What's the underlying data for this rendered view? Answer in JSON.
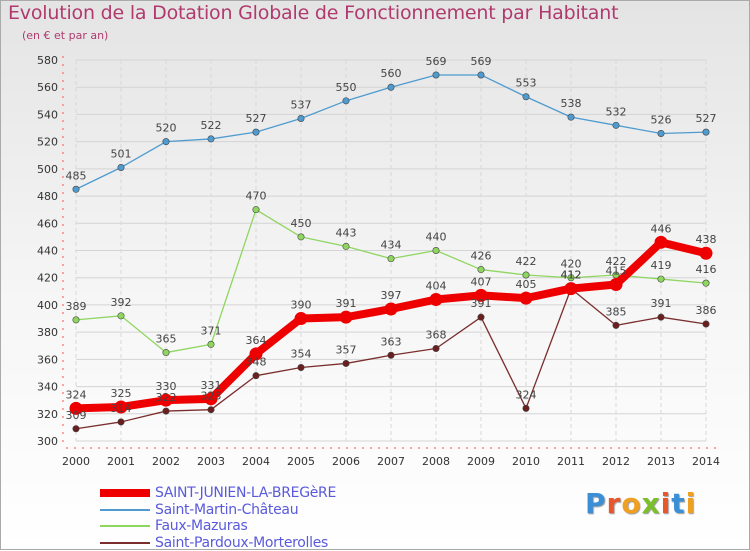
{
  "title": "Evolution de la Dotation Globale de Fonctionnement par Habitant",
  "subtitle": "(en € et par an)",
  "logo": {
    "text": "Proxiti",
    "colors": [
      "#3a8fd6",
      "#e8562a",
      "#f0a020",
      "#7bbf2a",
      "#e8562a",
      "#3a8fd6",
      "#f0a020"
    ]
  },
  "chart_data": {
    "type": "line",
    "title": "Evolution de la Dotation Globale de Fonctionnement par Habitant",
    "subtitle": "(en € et par an)",
    "xlabel": "",
    "ylabel": "",
    "x": [
      "2000",
      "2001",
      "2002",
      "2003",
      "2004",
      "2005",
      "2006",
      "2007",
      "2008",
      "2009",
      "2010",
      "2011",
      "2012",
      "2013",
      "2014"
    ],
    "ylim": [
      300,
      580
    ],
    "yticks": [
      300,
      320,
      340,
      360,
      380,
      400,
      420,
      440,
      460,
      480,
      500,
      520,
      540,
      560,
      580
    ],
    "grid": true,
    "legend_position": "bottom-left",
    "series": [
      {
        "name": "Saint-Martin-Château",
        "color": "#4f9bd0",
        "marker": "#4f9bd0",
        "values": [
          485,
          501,
          520,
          522,
          527,
          537,
          550,
          560,
          569,
          569,
          553,
          538,
          532,
          526,
          527
        ],
        "labels": [
          "485",
          "501",
          "520",
          "522",
          "527",
          "537",
          "550",
          "560",
          "569",
          "569",
          "553",
          "538",
          "532",
          "526",
          "527"
        ]
      },
      {
        "name": "Faux-Mazuras",
        "color": "#8fd660",
        "marker": "#8fd660",
        "values": [
          389,
          392,
          365,
          371,
          470,
          450,
          443,
          434,
          440,
          426,
          422,
          420,
          422,
          419,
          416
        ],
        "labels": [
          "389",
          "392",
          "365",
          "371",
          "470",
          "450",
          "443",
          "434",
          "440",
          "426",
          "422",
          "420",
          "422",
          "419",
          "416"
        ]
      },
      {
        "name": "Saint-Pardoux-Morterolles",
        "color": "#7a2e2e",
        "marker": "#6a1e1e",
        "values": [
          309,
          314,
          322,
          323,
          348,
          354,
          357,
          363,
          368,
          391,
          324,
          412,
          385,
          391,
          386
        ],
        "labels": [
          "309",
          "314",
          "322",
          "323",
          "348",
          "354",
          "357",
          "363",
          "368",
          "391",
          "324",
          "412",
          "385",
          "391",
          "386"
        ]
      },
      {
        "name": "SAINT-JUNIEN-LA-BREGèRE",
        "color": "#ee0000",
        "marker": "#ee0000",
        "values": [
          324,
          325,
          330,
          331,
          364,
          390,
          391,
          397,
          404,
          407,
          405,
          412,
          415,
          446,
          438
        ],
        "labels": [
          "324",
          "325",
          "330",
          "331",
          "364",
          "390",
          "391",
          "397",
          "404",
          "407",
          "405",
          "412",
          "415",
          "446",
          "438"
        ]
      }
    ],
    "legend": [
      {
        "label": "SAINT-JUNIEN-LA-BREGèRE",
        "color": "#ee0000",
        "thick": true
      },
      {
        "label": "Saint-Martin-Château",
        "color": "#4f9bd0",
        "thick": false
      },
      {
        "label": "Faux-Mazuras",
        "color": "#8fd660",
        "thick": false
      },
      {
        "label": "Saint-Pardoux-Morterolles",
        "color": "#7a2e2e",
        "thick": false
      }
    ]
  }
}
